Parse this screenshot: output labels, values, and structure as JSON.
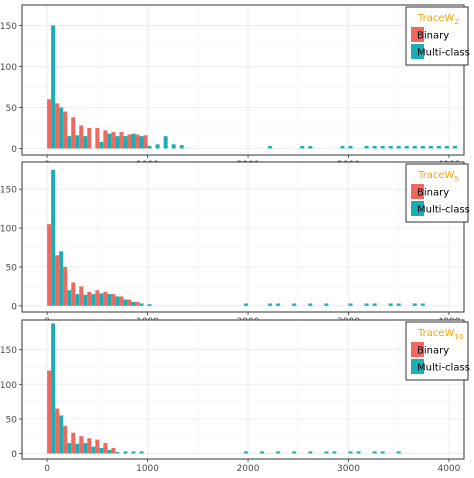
{
  "colors": {
    "binary": "#F0685E",
    "multi": "#1AAFB4",
    "panel_border": "#333333",
    "grid": "#EBEBEB",
    "legend_title": "#F5A400",
    "axis_text": "#4D4D4D"
  },
  "chart_data": [
    {
      "type": "bar",
      "legend": {
        "title_base": "TraceW",
        "title_sub": "2",
        "entries": [
          "Binary",
          "Multi-class"
        ],
        "position": "top-right"
      },
      "xlim": [
        -250,
        4150
      ],
      "ylim": [
        -8,
        175
      ],
      "x_ticks": [
        0,
        1000,
        2000,
        3000,
        4000
      ],
      "y_ticks": [
        0,
        50,
        100,
        150
      ],
      "x_tick_labels": [
        "0",
        "1000",
        "2000",
        "3000",
        "4000"
      ],
      "y_tick_labels": [
        "0",
        "50",
        "100",
        "150"
      ],
      "bin_width": 80,
      "series": [
        {
          "name": "Binary",
          "x": [
            40,
            120,
            200,
            280,
            360,
            440,
            520,
            600,
            680,
            760,
            840,
            920,
            1000
          ],
          "values": [
            60,
            55,
            45,
            38,
            28,
            25,
            25,
            22,
            20,
            20,
            17,
            17,
            16
          ]
        },
        {
          "name": "Multi-class",
          "x": [
            40,
            120,
            200,
            280,
            360,
            440,
            520,
            600,
            680,
            760,
            840,
            920,
            1000,
            1080,
            1160,
            1240,
            1320,
            1400,
            1480,
            1560,
            1640,
            1720,
            1800,
            1880,
            1960,
            2040,
            2120,
            2200,
            2280,
            2360,
            2440,
            2520,
            2600,
            2680,
            2760,
            2840,
            2920,
            3000,
            3080,
            3160,
            3240,
            3320,
            3400,
            3480,
            3560,
            3640,
            3720,
            3800,
            3880,
            3960,
            4040
          ],
          "values": [
            150,
            50,
            15,
            16,
            15,
            0,
            8,
            18,
            15,
            15,
            18,
            15,
            3,
            5,
            15,
            5,
            4,
            0,
            0,
            0,
            0,
            0,
            0,
            0,
            0,
            0,
            0,
            3,
            0,
            0,
            0,
            3,
            3,
            0,
            0,
            0,
            3,
            3,
            0,
            3,
            3,
            3,
            3,
            3,
            3,
            3,
            3,
            3,
            3,
            3,
            3
          ]
        }
      ]
    },
    {
      "type": "bar",
      "legend": {
        "title_base": "TraceW",
        "title_sub": "5",
        "entries": [
          "Binary",
          "Multi-class"
        ],
        "position": "top-right"
      },
      "xlim": [
        -250,
        4150
      ],
      "ylim": [
        -8,
        185
      ],
      "x_ticks": [
        0,
        1000,
        2000,
        3000,
        4000
      ],
      "y_ticks": [
        0,
        50,
        100,
        150
      ],
      "x_tick_labels": [
        "0",
        "1000",
        "2000",
        "3000",
        "4000"
      ],
      "y_tick_labels": [
        "0",
        "50",
        "100",
        "150"
      ],
      "bin_width": 80,
      "series": [
        {
          "name": "Binary",
          "x": [
            40,
            120,
            200,
            280,
            360,
            440,
            520,
            600,
            680,
            760,
            840,
            920
          ],
          "values": [
            105,
            65,
            50,
            30,
            25,
            18,
            20,
            18,
            15,
            12,
            8,
            5
          ]
        },
        {
          "name": "Multi-class",
          "x": [
            40,
            120,
            200,
            280,
            360,
            440,
            520,
            600,
            680,
            760,
            840,
            920,
            1000,
            1080,
            1160,
            1240,
            1320,
            1400,
            1480,
            1560,
            1640,
            1720,
            1800,
            1880,
            1960,
            2040,
            2120,
            2200,
            2280,
            2360,
            2440,
            2520,
            2600,
            2680,
            2760,
            2840,
            2920,
            3000,
            3080,
            3160,
            3240,
            3320,
            3400,
            3480,
            3560,
            3640,
            3720,
            3800
          ],
          "values": [
            175,
            70,
            20,
            15,
            14,
            15,
            16,
            15,
            12,
            8,
            5,
            3,
            2,
            0,
            0,
            0,
            0,
            0,
            0,
            0,
            0,
            0,
            0,
            0,
            3,
            0,
            0,
            3,
            3,
            0,
            3,
            0,
            3,
            0,
            3,
            0,
            0,
            3,
            0,
            3,
            3,
            0,
            3,
            3,
            0,
            3,
            3,
            0
          ]
        }
      ]
    },
    {
      "type": "bar",
      "legend": {
        "title_base": "TraceW",
        "title_sub": "10",
        "entries": [
          "Binary",
          "Multi-class"
        ],
        "position": "top-right"
      },
      "xlim": [
        -250,
        4150
      ],
      "ylim": [
        -8,
        193
      ],
      "x_ticks": [
        0,
        1000,
        2000,
        3000,
        4000
      ],
      "y_ticks": [
        0,
        50,
        100,
        150
      ],
      "x_tick_labels": [
        "0",
        "1000",
        "2000",
        "3000",
        "4000"
      ],
      "y_tick_labels": [
        "0",
        "50",
        "100",
        "150"
      ],
      "bin_width": 80,
      "series": [
        {
          "name": "Binary",
          "x": [
            40,
            120,
            200,
            280,
            360,
            440,
            520,
            600,
            680
          ],
          "values": [
            120,
            65,
            40,
            30,
            25,
            22,
            20,
            15,
            8
          ]
        },
        {
          "name": "Multi-class",
          "x": [
            40,
            120,
            200,
            280,
            360,
            440,
            520,
            600,
            680,
            760,
            840,
            920,
            1000,
            1080,
            1160,
            1240,
            1320,
            1400,
            1480,
            1560,
            1640,
            1720,
            1800,
            1880,
            1960,
            2040,
            2120,
            2200,
            2280,
            2360,
            2440,
            2520,
            2600,
            2680,
            2760,
            2840,
            2920,
            3000,
            3080,
            3160,
            3240,
            3320,
            3400,
            3480
          ],
          "values": [
            188,
            55,
            15,
            14,
            15,
            10,
            8,
            5,
            2,
            3,
            3,
            3,
            0,
            0,
            0,
            0,
            0,
            0,
            0,
            0,
            0,
            0,
            0,
            0,
            3,
            0,
            3,
            0,
            3,
            0,
            3,
            0,
            3,
            0,
            3,
            3,
            0,
            3,
            3,
            0,
            3,
            3,
            0,
            3
          ]
        }
      ]
    }
  ]
}
